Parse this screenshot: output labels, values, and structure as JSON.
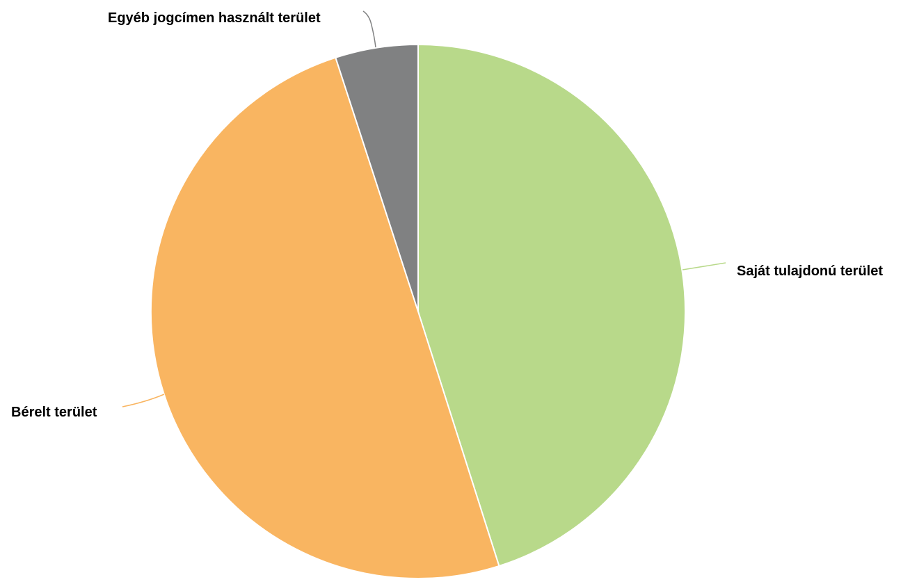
{
  "chart_data": {
    "type": "pie",
    "title": "",
    "slices": [
      {
        "label": "Saját tulajdonú terület",
        "value": 45.1,
        "color": "#b8d98a"
      },
      {
        "label": "Bérelt terület",
        "value": 49.9,
        "color": "#f9b561"
      },
      {
        "label": "Egyéb jogcímen használt terület",
        "value": 5.0,
        "color": "#808182"
      }
    ],
    "start_angle": "12 o'clock",
    "direction": "clockwise",
    "legend": "none",
    "slice_border_color": "#ffffff"
  }
}
